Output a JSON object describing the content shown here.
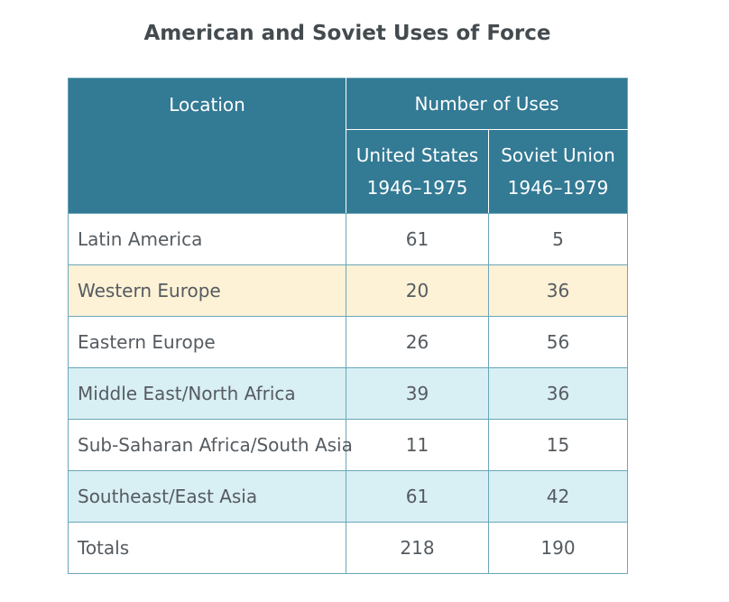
{
  "chart_data": {
    "type": "table",
    "title": "American and Soviet Uses of Force",
    "header": {
      "location": "Location",
      "group": "Number of Uses",
      "us_line1": "United States",
      "us_line2": "1946–1975",
      "su_line1": "Soviet Union",
      "su_line2": "1946–1979"
    },
    "rows": [
      {
        "location": "Latin America",
        "us": "61",
        "su": "5"
      },
      {
        "location": "Western Europe",
        "us": "20",
        "su": "36"
      },
      {
        "location": "Eastern Europe",
        "us": "26",
        "su": "56"
      },
      {
        "location": "Middle East/North Africa",
        "us": "39",
        "su": "36"
      },
      {
        "location": "Sub-Saharan Africa/South Asia",
        "us": "11",
        "su": "15"
      },
      {
        "location": "Southeast/East Asia",
        "us": "61",
        "su": "42"
      },
      {
        "location": "Totals",
        "us": "218",
        "su": "190"
      }
    ],
    "colors": {
      "header": "#337a94",
      "border": "#6aa7b8",
      "row_white": "#ffffff",
      "row_cream": "#fdf1d6",
      "row_blue": "#d8eff4",
      "text": "#555b60",
      "title": "#444b4f"
    }
  }
}
